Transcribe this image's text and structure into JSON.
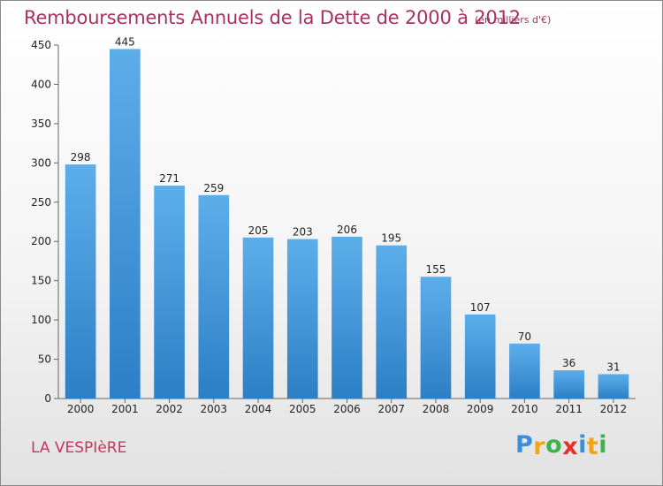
{
  "chart_data": {
    "type": "bar",
    "title": "Remboursements Annuels de la Dette de 2000 à 2012",
    "subtitle": "(en milliers d'€)",
    "categories": [
      "2000",
      "2001",
      "2002",
      "2003",
      "2004",
      "2005",
      "2006",
      "2007",
      "2008",
      "2009",
      "2010",
      "2011",
      "2012"
    ],
    "values": [
      298,
      445,
      271,
      259,
      205,
      203,
      206,
      195,
      155,
      107,
      70,
      36,
      31
    ],
    "ylim": [
      0,
      450
    ],
    "yticks": [
      0,
      50,
      100,
      150,
      200,
      250,
      300,
      350,
      400,
      450
    ],
    "grid": false,
    "colors": {
      "bar_light": "#5caeea",
      "bar_dark": "#2d7fc6",
      "title": "#a8325e"
    }
  },
  "footer": {
    "commune": "LA VESPIèRE",
    "logo_letters": [
      "P",
      "r",
      "o",
      "x",
      "i",
      "t",
      "i"
    ],
    "logo_colors": [
      "#3b8fd8",
      "#f2a416",
      "#3bb54a",
      "#e8302a",
      "#3b8fd8",
      "#f2a416",
      "#3bb54a"
    ]
  }
}
